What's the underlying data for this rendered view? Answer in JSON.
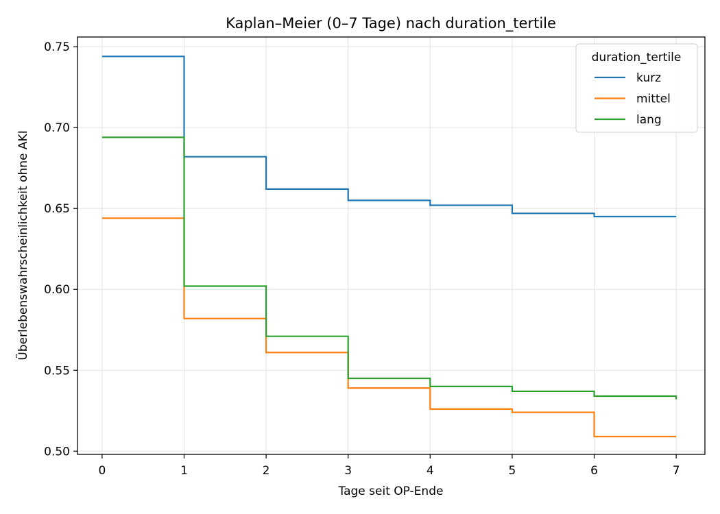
{
  "chart_data": {
    "type": "line",
    "step": true,
    "title": "Kaplan–Meier (0–7 Tage) nach duration_tertile",
    "xlabel": "Tage seit OP-Ende",
    "ylabel": "Überlebenswahrscheinlichkeit ohne AKI",
    "xlim": [
      -0.3,
      7.35
    ],
    "ylim": [
      0.498,
      0.756
    ],
    "xticks": [
      0,
      1,
      2,
      3,
      4,
      5,
      6,
      7
    ],
    "yticks": [
      "0.50",
      "0.55",
      "0.60",
      "0.65",
      "0.70",
      "0.75"
    ],
    "grid": true,
    "legend": {
      "title": "duration_tertile",
      "position": "top-right"
    },
    "series": [
      {
        "name": "kurz",
        "color": "#1f77b4",
        "x": [
          0,
          1,
          2,
          3,
          4,
          5,
          6,
          7
        ],
        "y": [
          0.744,
          0.682,
          0.662,
          0.655,
          0.652,
          0.647,
          0.645,
          0.645
        ]
      },
      {
        "name": "mittel",
        "color": "#ff7f0e",
        "x": [
          0,
          1,
          2,
          3,
          4,
          5,
          6,
          7
        ],
        "y": [
          0.644,
          0.582,
          0.561,
          0.539,
          0.526,
          0.524,
          0.509,
          0.509
        ]
      },
      {
        "name": "lang",
        "color": "#2ca02c",
        "x": [
          0,
          1,
          2,
          3,
          4,
          5,
          6,
          7,
          7
        ],
        "y": [
          0.694,
          0.602,
          0.571,
          0.545,
          0.54,
          0.537,
          0.534,
          0.534,
          0.532
        ]
      }
    ]
  }
}
